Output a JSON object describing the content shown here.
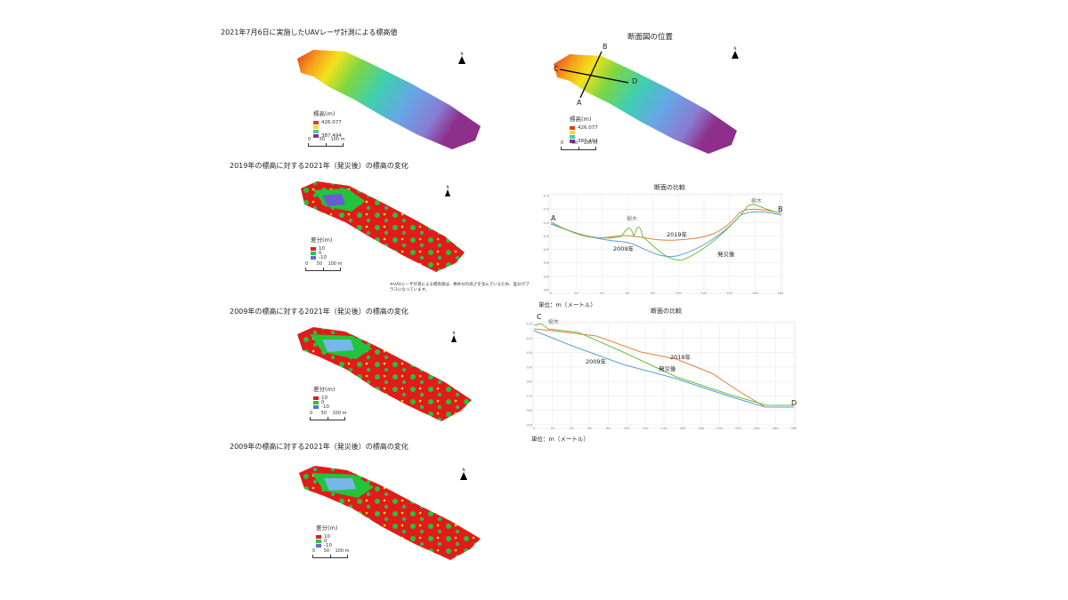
{
  "panel1": {
    "title": "2021年7月6日に実施したUAVレーザ計測による標高値",
    "legend_title": "標高(m)",
    "legend_high": "426.077",
    "legend_low": "387.494",
    "scale": [
      "0",
      "50",
      "100 m"
    ]
  },
  "panel2": {
    "title": "2019年の標高に対する2021年（発災後）の標高の変化",
    "legend_title": "差分(m)",
    "legend_items": [
      "10",
      "0",
      "-10"
    ],
    "scale": [
      "0",
      "50",
      "100 m"
    ],
    "note": "※UAVレーザ計測による標高値は、樹木分の高さを含んでいるため、差分がプラスになっています。"
  },
  "panel3": {
    "title": "2009年の標高に対する2021年（発災後）の標高の変化",
    "legend_title": "差分(m)",
    "legend_items": [
      "10",
      "0",
      "-10"
    ],
    "scale": [
      "0",
      "50",
      "100 m"
    ]
  },
  "panel4": {
    "title": "2009年の標高に対する2021年（発災後）の標高の変化",
    "legend_title": "差分(m)",
    "legend_items": [
      "10",
      "0",
      "-10"
    ],
    "scale": [
      "0",
      "50",
      "100 m"
    ]
  },
  "location": {
    "title": "断面図の位置",
    "legend_title": "標高(m)",
    "legend_high": "426.077",
    "legend_low": "387.494",
    "scale": [
      "0",
      "50",
      "100 m"
    ],
    "labels": {
      "a": "A",
      "b": "B",
      "c": "C",
      "d": "D"
    }
  },
  "north_label": "N",
  "section_ab": {
    "title": "断面の比較",
    "unit": "単位：m（メートル）",
    "end_left": "A",
    "end_right": "B",
    "tree_labels": [
      "樹木",
      "樹木"
    ],
    "series_labels": {
      "y2019": "2019年",
      "y2009": "2009年",
      "after": "発災後"
    },
    "y_ticks": [
      "420",
      "415",
      "410",
      "405",
      "400",
      "395",
      "390",
      "385"
    ],
    "x_ticks": [
      "0",
      "20",
      "40",
      "60",
      "80",
      "100",
      "120",
      "140",
      "160",
      "180"
    ]
  },
  "section_cd": {
    "title": "断面の比較",
    "unit": "単位：m（メートル）",
    "end_left": "C",
    "end_right": "D",
    "tree_labels": [
      "樹木"
    ],
    "series_labels": {
      "y2019": "2019年",
      "y2009": "2009年",
      "after": "発災後"
    },
    "y_ticks": [
      "420",
      "410",
      "400",
      "390",
      "380",
      "370",
      "360",
      "350"
    ],
    "x_ticks": [
      "0",
      "20",
      "40",
      "60",
      "80",
      "100",
      "120",
      "140",
      "160",
      "180",
      "200",
      "220",
      "240",
      "260",
      "280"
    ]
  },
  "colors": {
    "y2019": "#e8813a",
    "y2009": "#5aa0d8",
    "after": "#6abf45",
    "gain": "#e21a1a",
    "mid": "#21c43a",
    "loss": "#5b6fd6"
  }
}
